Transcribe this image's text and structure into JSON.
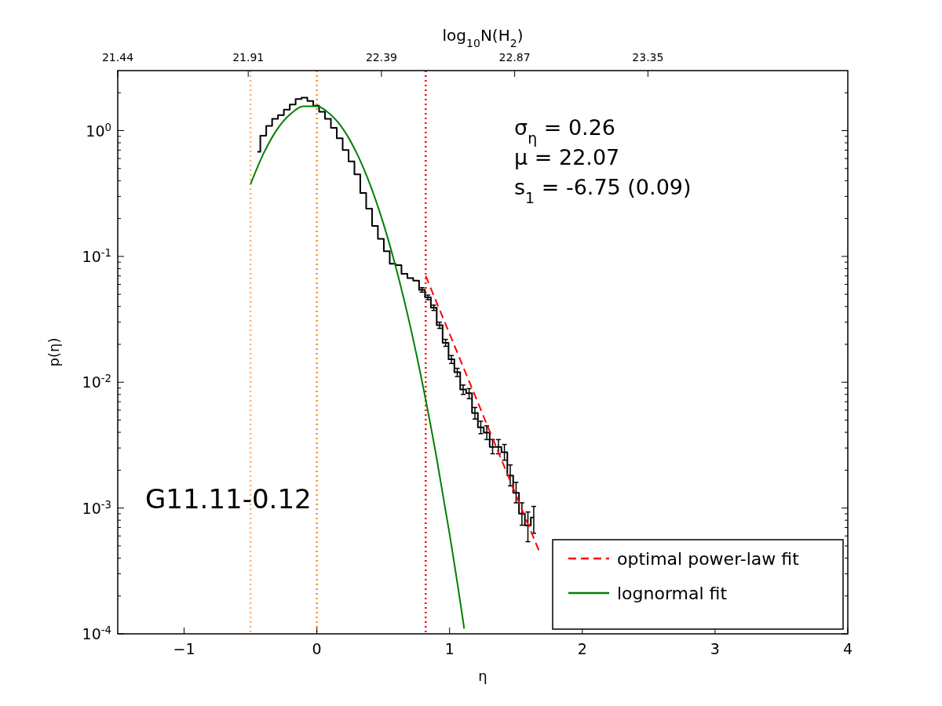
{
  "chart_data": {
    "type": "line",
    "xlabel": "η",
    "ylabel": "p(η)",
    "x2label": "log$_{10}$N(H$_{2}$)",
    "xlim": [
      -1.5,
      4
    ],
    "xticks": [
      {
        "value": -1,
        "label": "−1"
      },
      0,
      1,
      2,
      3,
      4
    ],
    "x2lim": [
      21.44,
      24.07
    ],
    "x2ticks": [
      21.44,
      21.91,
      22.39,
      22.87,
      23.35
    ],
    "ylim": [
      0.0001,
      3
    ],
    "log": "y",
    "yticks": [
      {
        "value": 0.0001,
        "label": "10$^{-4}$"
      },
      {
        "value": 0.001,
        "label": "10$^{-3}$"
      },
      {
        "value": 0.01,
        "label": "10$^{-2}$"
      },
      {
        "value": 0.1,
        "label": "10$^{-1}$"
      },
      {
        "value": 1,
        "label": "10$^{0}$"
      }
    ],
    "grid": false,
    "legend": "bottom right",
    "marker": "none",
    "series": [
      {
        "type": "step",
        "color": "#000000",
        "line_style": "solid",
        "x": [
          -0.448,
          -0.404,
          -0.359,
          -0.315,
          -0.271,
          -0.226,
          -0.182,
          -0.138,
          -0.094,
          -0.049,
          -0.005,
          0.039,
          0.084,
          0.128,
          0.172,
          0.217,
          0.261,
          0.305,
          0.349,
          0.394,
          0.438,
          0.482,
          0.527,
          0.571,
          0.615,
          0.66,
          0.704,
          0.748,
          0.792,
          0.837,
          0.881,
          0.925,
          0.97,
          1.014,
          1.058,
          1.102,
          1.147,
          1.191,
          1.235,
          1.28,
          1.324,
          1.368,
          1.413,
          1.457,
          1.501,
          1.545,
          1.59,
          1.634
        ],
        "values": [
          0.68,
          0.91,
          1.09,
          1.24,
          1.33,
          1.47,
          1.61,
          1.78,
          1.83,
          1.72,
          1.58,
          1.41,
          1.24,
          1.05,
          0.87,
          0.7,
          0.57,
          0.45,
          0.32,
          0.24,
          0.175,
          0.138,
          0.11,
          0.0873,
          0.0853,
          0.0729,
          0.0672,
          0.0641,
          0.0542,
          0.0473,
          0.0391,
          0.0284,
          0.0206,
          0.0152,
          0.012,
          0.00877,
          0.00817,
          0.0057,
          0.00438,
          0.00398,
          0.00306,
          0.00306,
          0.00278,
          0.00181,
          0.00132,
          0.000903,
          0.000728,
          0.000841
        ],
        "errors": [
          null,
          null,
          null,
          null,
          null,
          null,
          null,
          null,
          null,
          null,
          null,
          null,
          null,
          null,
          null,
          null,
          null,
          null,
          null,
          null,
          null,
          null,
          null,
          null,
          null,
          null,
          null,
          null,
          [
            0.052,
            0.0564
          ],
          [
            0.0453,
            0.0493
          ],
          [
            0.0372,
            0.041
          ],
          [
            0.0268,
            0.03
          ],
          [
            0.0193,
            0.0219
          ],
          [
            0.0141,
            0.0163
          ],
          [
            0.0111,
            0.0129
          ],
          [
            0.008,
            0.0095
          ],
          [
            0.0074,
            0.0089
          ],
          [
            0.0051,
            0.0063
          ],
          [
            0.0039,
            0.0049
          ],
          [
            0.0035,
            0.0045
          ],
          [
            0.0027,
            0.0035
          ],
          [
            0.0027,
            0.0035
          ],
          [
            0.0024,
            0.0032
          ],
          [
            0.0015,
            0.0022
          ],
          [
            0.0011,
            0.0016
          ],
          [
            0.00073,
            0.0011
          ],
          [
            0.00054,
            0.00093
          ],
          [
            0.00063,
            0.00103
          ]
        ]
      },
      {
        "type": "line",
        "name": "optimal power-law fit",
        "color": "#ff0000",
        "line_style": "dashed",
        "x": [
          0.82,
          1.25,
          1.68
        ],
        "values": [
          0.07,
          0.00555,
          0.00044
        ]
      },
      {
        "type": "line",
        "name": "lognormal fit",
        "color": "#008000",
        "line_style": "solid",
        "x": [
          -0.5,
          -0.4,
          -0.3,
          -0.2,
          -0.1,
          0,
          0.1,
          0.2,
          0.3,
          0.4,
          0.5,
          0.6,
          0.7,
          0.8,
          0.9,
          1.0,
          1.1,
          1.11
        ],
        "values": [
          0.375,
          0.663,
          1.02,
          1.35,
          1.56,
          1.56,
          1.35,
          1.02,
          0.663,
          0.375,
          0.184,
          0.0784,
          0.029,
          0.00927,
          0.00258,
          0.00062,
          0.00013,
          0.00011
        ]
      }
    ],
    "ref_lines": [
      {
        "axis": "x",
        "value": -0.5,
        "color": "#f4b27a",
        "line_style": "dotted"
      },
      {
        "axis": "x",
        "value": 0,
        "color": "#ff8c1a",
        "line_style": "dotted"
      },
      {
        "axis": "x",
        "value": 0.82,
        "color": "#ff0000",
        "line_style": "dotted"
      }
    ],
    "annotations": [
      "σ$_{η}$ = 0.26",
      "μ = 22.07",
      "s$_{1}$ = -6.75 (0.09)",
      "G11.11-0.12"
    ]
  }
}
